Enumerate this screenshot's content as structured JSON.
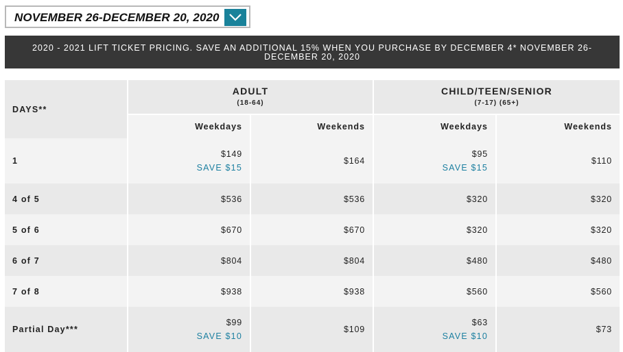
{
  "date_select": {
    "selected": "NOVEMBER 26-DECEMBER 20, 2020",
    "button_color": "#19829a",
    "icon": "chevron-down-icon"
  },
  "banner": {
    "text": "2020 - 2021 LIFT TICKET PRICING. SAVE AN ADDITIONAL 15% WHEN YOU PURCHASE BY DECEMBER 4* NOVEMBER 26-DECEMBER 20, 2020"
  },
  "table": {
    "days_header": "DAYS**",
    "groups": [
      {
        "title": "ADULT",
        "sub": "(18-64)"
      },
      {
        "title": "CHILD/TEEN/SENIOR",
        "sub": "(7-17) (65+)"
      }
    ],
    "subheaders": [
      "Weekdays",
      "Weekends",
      "Weekdays",
      "Weekends"
    ],
    "rows": [
      {
        "day": "1",
        "adult_weekdays": "$149",
        "adult_weekdays_save": "SAVE $15",
        "adult_weekends": "$164",
        "cts_weekdays": "$95",
        "cts_weekdays_save": "SAVE $15",
        "cts_weekends": "$110"
      },
      {
        "day": "4 of 5",
        "adult_weekdays": "$536",
        "adult_weekends": "$536",
        "cts_weekdays": "$320",
        "cts_weekends": "$320"
      },
      {
        "day": "5 of 6",
        "adult_weekdays": "$670",
        "adult_weekends": "$670",
        "cts_weekdays": "$320",
        "cts_weekends": "$320"
      },
      {
        "day": "6 of 7",
        "adult_weekdays": "$804",
        "adult_weekends": "$804",
        "cts_weekdays": "$480",
        "cts_weekends": "$480"
      },
      {
        "day": "7 of 8",
        "adult_weekdays": "$938",
        "adult_weekends": "$938",
        "cts_weekdays": "$560",
        "cts_weekends": "$560"
      },
      {
        "day": "Partial Day***",
        "adult_weekdays": "$99",
        "adult_weekdays_save": "SAVE $10",
        "adult_weekends": "$109",
        "cts_weekdays": "$63",
        "cts_weekdays_save": "SAVE $10",
        "cts_weekends": "$73"
      }
    ]
  },
  "colors": {
    "accent": "#1b7fa0",
    "banner_bg": "#373737"
  }
}
